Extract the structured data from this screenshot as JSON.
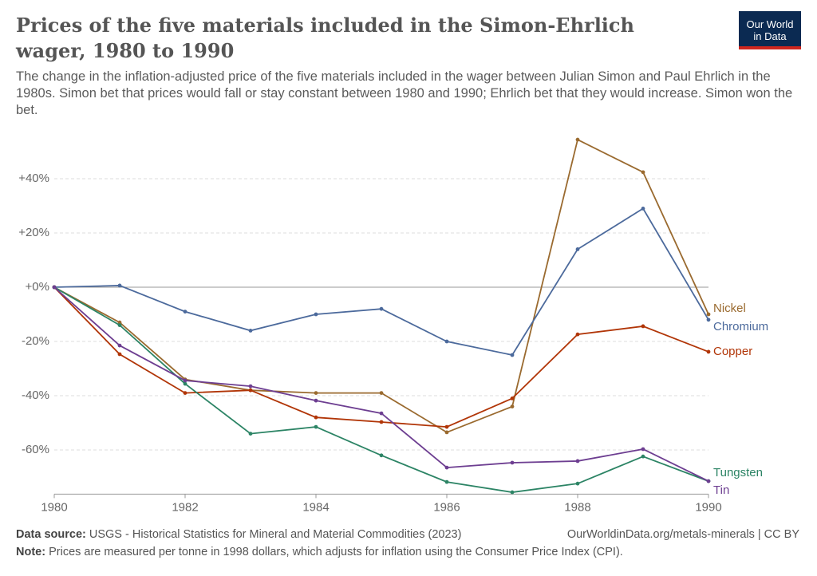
{
  "header": {
    "title": "Prices of the five materials included in the Simon-Ehrlich wager, 1980 to 1990",
    "subtitle": "The change in the inflation-adjusted price of the five materials included in the wager between Julian Simon and Paul Ehrlich in the 1980s. Simon bet that prices would fall or stay constant between 1980 and 1990; Ehrlich bet that they would increase. Simon won the bet.",
    "logo": [
      "Our World",
      "in Data"
    ]
  },
  "chart_data": {
    "type": "line",
    "x": [
      1980,
      1981,
      1982,
      1983,
      1984,
      1985,
      1986,
      1987,
      1988,
      1989,
      1990
    ],
    "xlim": [
      1980,
      1990
    ],
    "xticks": [
      1980,
      1982,
      1984,
      1986,
      1988,
      1990
    ],
    "ylim": [
      -76,
      56
    ],
    "yticks": [
      {
        "value": 40,
        "label": "+40%"
      },
      {
        "value": 20,
        "label": "+20%"
      },
      {
        "value": 0,
        "label": "+0%"
      },
      {
        "value": -20,
        "label": "-20%"
      },
      {
        "value": -40,
        "label": "-40%"
      },
      {
        "value": -60,
        "label": "-60%"
      }
    ],
    "grid": true,
    "series": [
      {
        "name": "Nickel",
        "color": "#9a6a2f",
        "values": [
          0,
          -13,
          -34,
          -38,
          -39,
          -39,
          -53.5,
          -44,
          54.4,
          42.4,
          -10
        ]
      },
      {
        "name": "Chromium",
        "color": "#4c6a9c",
        "values": [
          0,
          0.6,
          -9,
          -16,
          -10,
          -8,
          -20,
          -25,
          14,
          29,
          -12
        ]
      },
      {
        "name": "Copper",
        "color": "#b13507",
        "values": [
          0,
          -24.7,
          -39,
          -38,
          -48,
          -49.7,
          -51.5,
          -41,
          -17.4,
          -14.4,
          -23.8
        ]
      },
      {
        "name": "Tungsten",
        "color": "#2c8465",
        "values": [
          0,
          -14,
          -35.6,
          -54,
          -51.5,
          -62,
          -71.8,
          -75.6,
          -72.4,
          -62.4,
          -71.5
        ]
      },
      {
        "name": "Tin",
        "color": "#6d3e91",
        "values": [
          0,
          -21.5,
          -34.4,
          -36.5,
          -41.8,
          -46.5,
          -66.5,
          -64.7,
          -64.1,
          -59.7,
          -71.5
        ]
      }
    ]
  },
  "footer": {
    "source_label": "Data source:",
    "source": "USGS - Historical Statistics for Mineral and Material Commodities (2023)",
    "url": "OurWorldinData.org/metals-minerals | CC BY",
    "note_label": "Note:",
    "note": "Prices are measured per tonne in 1998 dollars, which adjusts for inflation using the Consumer Price Index (CPI)."
  }
}
